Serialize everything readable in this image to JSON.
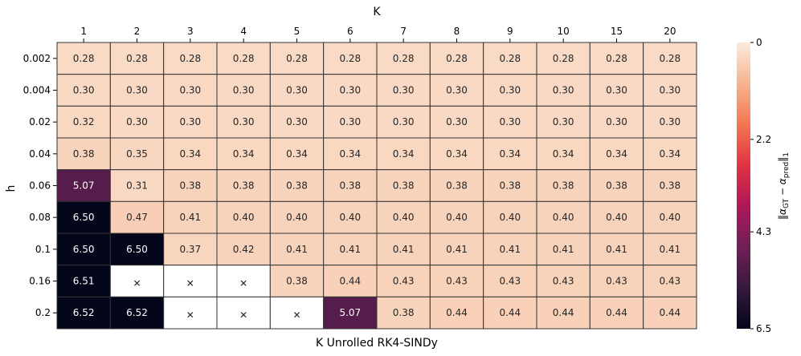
{
  "chart_data": {
    "type": "heatmap",
    "title": "",
    "xlabel_top": "K",
    "xlabel_bottom": "K Unrolled RK4-SINDy",
    "ylabel": "h",
    "x_categories": [
      "1",
      "2",
      "3",
      "4",
      "5",
      "6",
      "7",
      "8",
      "9",
      "10",
      "15",
      "20"
    ],
    "y_categories": [
      "0.002",
      "0.004",
      "0.02",
      "0.04",
      "0.06",
      "0.08",
      "0.1",
      "0.16",
      "0.2"
    ],
    "values": [
      [
        0.28,
        0.28,
        0.28,
        0.28,
        0.28,
        0.28,
        0.28,
        0.28,
        0.28,
        0.28,
        0.28,
        0.28
      ],
      [
        0.3,
        0.3,
        0.3,
        0.3,
        0.3,
        0.3,
        0.3,
        0.3,
        0.3,
        0.3,
        0.3,
        0.3
      ],
      [
        0.32,
        0.3,
        0.3,
        0.3,
        0.3,
        0.3,
        0.3,
        0.3,
        0.3,
        0.3,
        0.3,
        0.3
      ],
      [
        0.38,
        0.35,
        0.34,
        0.34,
        0.34,
        0.34,
        0.34,
        0.34,
        0.34,
        0.34,
        0.34,
        0.34
      ],
      [
        5.07,
        0.31,
        0.38,
        0.38,
        0.38,
        0.38,
        0.38,
        0.38,
        0.38,
        0.38,
        0.38,
        0.38
      ],
      [
        6.5,
        0.47,
        0.41,
        0.4,
        0.4,
        0.4,
        0.4,
        0.4,
        0.4,
        0.4,
        0.4,
        0.4
      ],
      [
        6.5,
        6.5,
        0.37,
        0.42,
        0.41,
        0.41,
        0.41,
        0.41,
        0.41,
        0.41,
        0.41,
        0.41
      ],
      [
        6.51,
        null,
        null,
        null,
        0.38,
        0.44,
        0.43,
        0.43,
        0.43,
        0.43,
        0.43,
        0.43
      ],
      [
        6.52,
        6.52,
        null,
        null,
        null,
        5.07,
        0.38,
        0.44,
        0.44,
        0.44,
        0.44,
        0.44
      ]
    ],
    "value_labels": [
      [
        "0.28",
        "0.28",
        "0.28",
        "0.28",
        "0.28",
        "0.28",
        "0.28",
        "0.28",
        "0.28",
        "0.28",
        "0.28",
        "0.28"
      ],
      [
        "0.30",
        "0.30",
        "0.30",
        "0.30",
        "0.30",
        "0.30",
        "0.30",
        "0.30",
        "0.30",
        "0.30",
        "0.30",
        "0.30"
      ],
      [
        "0.32",
        "0.30",
        "0.30",
        "0.30",
        "0.30",
        "0.30",
        "0.30",
        "0.30",
        "0.30",
        "0.30",
        "0.30",
        "0.30"
      ],
      [
        "0.38",
        "0.35",
        "0.34",
        "0.34",
        "0.34",
        "0.34",
        "0.34",
        "0.34",
        "0.34",
        "0.34",
        "0.34",
        "0.34"
      ],
      [
        "5.07",
        "0.31",
        "0.38",
        "0.38",
        "0.38",
        "0.38",
        "0.38",
        "0.38",
        "0.38",
        "0.38",
        "0.38",
        "0.38"
      ],
      [
        "6.50",
        "0.47",
        "0.41",
        "0.40",
        "0.40",
        "0.40",
        "0.40",
        "0.40",
        "0.40",
        "0.40",
        "0.40",
        "0.40"
      ],
      [
        "6.50",
        "6.50",
        "0.37",
        "0.42",
        "0.41",
        "0.41",
        "0.41",
        "0.41",
        "0.41",
        "0.41",
        "0.41",
        "0.41"
      ],
      [
        "6.51",
        "✕",
        "✕",
        "✕",
        "0.38",
        "0.44",
        "0.43",
        "0.43",
        "0.43",
        "0.43",
        "0.43",
        "0.43"
      ],
      [
        "6.52",
        "6.52",
        "✕",
        "✕",
        "✕",
        "5.07",
        "0.38",
        "0.44",
        "0.44",
        "0.44",
        "0.44",
        "0.44"
      ]
    ],
    "missing_marker": "✕",
    "colorbar": {
      "label": "‖α_GT − α_pred‖₁",
      "range": [
        0,
        6.5
      ],
      "ticks": [
        0,
        2.2,
        4.3,
        6.5
      ],
      "tick_labels": [
        "0",
        "2.2",
        "4.3",
        "6.5"
      ],
      "colormap": "rocket_r",
      "inverted": true,
      "colors": [
        "#faebdd",
        "#f6b48f",
        "#f37651",
        "#e13342",
        "#ad1759",
        "#701f57",
        "#35193e",
        "#03051a"
      ]
    },
    "grid": true,
    "cell_border_color": "#333333",
    "missing_color": "#ffffff"
  }
}
